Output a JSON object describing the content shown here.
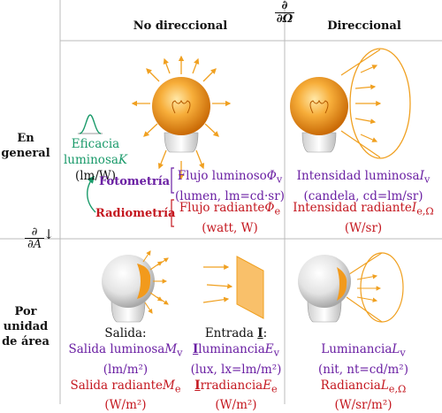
{
  "headers": {
    "col_non_directional": "No direccional",
    "col_directional": "Direccional",
    "op_solid_angle_num": "∂",
    "op_solid_angle_den": "∂Ω",
    "op_area_num": "∂",
    "op_area_den": "∂A",
    "op_area_arrow": "↓",
    "op_solid_angle_arrow": "→",
    "row_general_1": "En",
    "row_general_2": "general",
    "row_per_area_1": "Por",
    "row_per_area_2": "unidad",
    "row_per_area_3": "de área"
  },
  "efficacy": {
    "line1": "Eficacia",
    "line2": "luminosa",
    "symbol": "K",
    "unit": "(lm/W)"
  },
  "labels": {
    "photometry": "Fotometría",
    "radiometry": "Radiometría"
  },
  "general": {
    "flux_lum_name": "Flujo luminoso",
    "flux_lum_symbol": "Φ",
    "flux_lum_sub": "v",
    "flux_lum_unit": "(lumen, lm=cd·sr)",
    "flux_rad_name": "Flujo radiante",
    "flux_rad_symbol": "Φ",
    "flux_rad_sub": "e",
    "flux_rad_unit": "(watt, W)",
    "int_lum_name": "Intensidad luminosa",
    "int_lum_symbol": "I",
    "int_lum_sub": "v",
    "int_lum_unit": "(candela, cd=lm/sr)",
    "int_rad_name": "Intensidad radiante",
    "int_rad_symbol": "I",
    "int_rad_sub": "e,Ω",
    "int_rad_unit": "(W/sr)"
  },
  "per_area": {
    "exit_title": "Salida:",
    "exit_lum_name": "Salida luminosa",
    "exit_lum_symbol": "M",
    "exit_lum_sub": "v",
    "exit_lum_unit": "(lm/m²)",
    "exit_rad_name": "Salida radiante",
    "exit_rad_symbol": "M",
    "exit_rad_sub": "e",
    "exit_rad_unit": "(W/m²)",
    "entry_title": "Entrada ",
    "entry_title_symbol": "I",
    "entry_title_colon": ":",
    "illum_prefix": "I",
    "illum_name": "luminancia",
    "illum_symbol": "E",
    "illum_sub": "v",
    "illum_unit": "(lux, lx=lm/m²)",
    "irrad_prefix": "I",
    "irrad_name": "rradiancia",
    "irrad_symbol": "E",
    "irrad_sub": "e",
    "irrad_unit": "(W/m²)",
    "lum_name": "Luminancia",
    "lum_symbol": "L",
    "lum_sub": "v",
    "lum_unit": "(nit, nt=cd/m²)",
    "rad_name": "Radiancia",
    "rad_symbol": "L",
    "rad_sub": "e,Ω",
    "rad_unit": "(W/sr/m²)"
  },
  "colors": {
    "photometry": "#6a1fa3",
    "radiometry": "#c4171f",
    "efficacy": "#1a9a6a",
    "arrow_orange": "#f0a020",
    "bulb_orange": "#f29a1c",
    "grid_line": "#bbbbbb"
  }
}
